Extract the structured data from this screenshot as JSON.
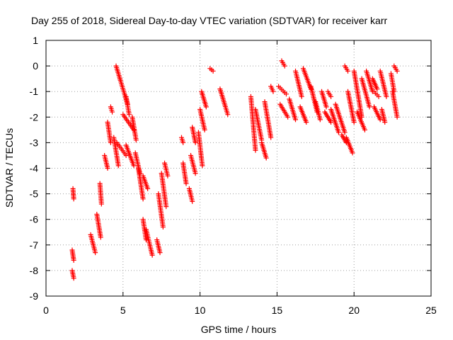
{
  "chart_data": {
    "type": "scatter",
    "title": "Day 255 of 2018, Sidereal Day-to-day VTEC variation (SDTVAR) for receiver karr",
    "xlabel": "GPS time / hours",
    "ylabel": "SDTVAR / TECUs",
    "xlim": [
      0,
      25
    ],
    "ylim": [
      -9,
      1
    ],
    "xticks": [
      "0",
      "5",
      "10",
      "15",
      "20",
      "25"
    ],
    "yticks": [
      "1",
      "0",
      "-1",
      "-2",
      "-3",
      "-4",
      "-5",
      "-6",
      "-7",
      "-8",
      "-9"
    ],
    "grid": true,
    "marker": "plus",
    "color": "#ff0000",
    "series": [
      {
        "name": "karr",
        "segments": [
          [
            1.7,
            1.8,
            -7.2,
            -7.6
          ],
          [
            1.7,
            1.8,
            -8.0,
            -8.3
          ],
          [
            1.75,
            1.8,
            -4.8,
            -5.2
          ],
          [
            2.9,
            3.2,
            -6.6,
            -7.3
          ],
          [
            3.3,
            3.55,
            -5.8,
            -6.7
          ],
          [
            3.5,
            3.6,
            -4.6,
            -5.4
          ],
          [
            3.8,
            4.0,
            -3.5,
            -4.0
          ],
          [
            4.0,
            4.2,
            -2.2,
            -3.0
          ],
          [
            4.2,
            4.3,
            -1.6,
            -1.8
          ],
          [
            4.55,
            4.8,
            0.0,
            -0.5
          ],
          [
            4.8,
            5.3,
            -0.5,
            -1.5
          ],
          [
            4.4,
            4.7,
            -2.8,
            -3.9
          ],
          [
            4.6,
            5.2,
            -3.0,
            -3.5
          ],
          [
            5.2,
            5.7,
            -3.1,
            -3.9
          ],
          [
            5.0,
            5.7,
            -1.9,
            -2.5
          ],
          [
            5.2,
            5.4,
            -1.2,
            -1.9
          ],
          [
            5.6,
            5.85,
            -2.0,
            -2.9
          ],
          [
            5.8,
            6.1,
            -3.4,
            -4.2
          ],
          [
            6.0,
            6.3,
            -4.0,
            -5.2
          ],
          [
            6.3,
            6.6,
            -4.3,
            -4.8
          ],
          [
            6.3,
            6.5,
            -6.0,
            -6.8
          ],
          [
            6.5,
            6.9,
            -6.4,
            -7.4
          ],
          [
            7.2,
            7.4,
            -6.8,
            -7.3
          ],
          [
            7.3,
            7.6,
            -5.0,
            -6.3
          ],
          [
            7.5,
            7.8,
            -4.2,
            -5.5
          ],
          [
            7.7,
            7.9,
            -3.8,
            -4.3
          ],
          [
            8.8,
            8.9,
            -2.8,
            -3.0
          ],
          [
            8.9,
            9.1,
            -3.8,
            -4.6
          ],
          [
            9.3,
            9.5,
            -4.8,
            -5.3
          ],
          [
            9.4,
            9.7,
            -3.5,
            -4.2
          ],
          [
            9.5,
            9.7,
            -2.4,
            -3.0
          ],
          [
            9.9,
            10.15,
            -2.6,
            -3.9
          ],
          [
            10.0,
            10.3,
            -1.7,
            -2.5
          ],
          [
            10.1,
            10.4,
            -1.0,
            -1.6
          ],
          [
            10.65,
            10.85,
            -0.1,
            -0.2
          ],
          [
            11.3,
            11.8,
            -0.9,
            -1.9
          ],
          [
            13.3,
            13.6,
            -1.2,
            -3.3
          ],
          [
            13.6,
            14.0,
            -1.7,
            -2.9
          ],
          [
            14.0,
            14.3,
            -3.0,
            -3.6
          ],
          [
            14.2,
            14.6,
            -1.4,
            -2.8
          ],
          [
            14.6,
            14.75,
            -0.8,
            -1.0
          ],
          [
            15.3,
            15.5,
            0.2,
            0.0
          ],
          [
            15.1,
            15.6,
            -0.8,
            -1.1
          ],
          [
            15.2,
            15.7,
            -1.5,
            -2.0
          ],
          [
            15.8,
            16.2,
            -1.3,
            -2.1
          ],
          [
            16.2,
            16.6,
            -0.2,
            -1.2
          ],
          [
            16.5,
            16.9,
            -1.6,
            -2.2
          ],
          [
            16.7,
            17.2,
            -0.1,
            -0.9
          ],
          [
            17.2,
            17.6,
            -0.8,
            -1.8
          ],
          [
            17.5,
            17.8,
            -1.4,
            -2.1
          ],
          [
            17.9,
            18.2,
            -1.0,
            -1.6
          ],
          [
            18.1,
            18.5,
            -1.8,
            -2.2
          ],
          [
            18.3,
            18.5,
            -1.0,
            -1.2
          ],
          [
            18.5,
            19.0,
            -1.7,
            -2.6
          ],
          [
            18.8,
            19.4,
            -1.5,
            -2.6
          ],
          [
            19.2,
            19.5,
            -2.7,
            -3.0
          ],
          [
            19.4,
            19.6,
            0.0,
            -0.2
          ],
          [
            19.5,
            19.9,
            -2.8,
            -3.4
          ],
          [
            19.6,
            20.0,
            -1.0,
            -2.2
          ],
          [
            20.0,
            20.5,
            -0.2,
            -2.0
          ],
          [
            20.2,
            20.7,
            -1.8,
            -2.5
          ],
          [
            20.5,
            21.0,
            -0.5,
            -1.6
          ],
          [
            20.8,
            21.2,
            -0.2,
            -1.0
          ],
          [
            21.3,
            21.6,
            -1.0,
            -1.2
          ],
          [
            21.2,
            21.5,
            -0.5,
            -0.9
          ],
          [
            21.3,
            21.7,
            -1.6,
            -2.1
          ],
          [
            21.7,
            22.1,
            -0.2,
            -1.2
          ],
          [
            21.8,
            22.0,
            -1.7,
            -2.2
          ],
          [
            22.4,
            22.6,
            -0.3,
            -1.0
          ],
          [
            22.5,
            22.8,
            -1.0,
            -2.0
          ],
          [
            22.6,
            22.8,
            0.0,
            -0.2
          ]
        ]
      }
    ]
  }
}
